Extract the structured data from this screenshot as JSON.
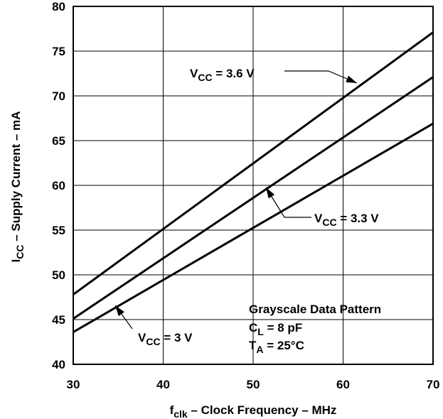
{
  "chart_data": {
    "type": "line",
    "xlabel": {
      "main": "f",
      "sub": "clk",
      "rest": " – Clock Frequency – MHz"
    },
    "ylabel": {
      "main": "I",
      "sub": "CC",
      "rest": " – Supply Current – mA"
    },
    "xlim": [
      30,
      70
    ],
    "ylim": [
      40,
      80
    ],
    "xticks": [
      30,
      40,
      50,
      60,
      70
    ],
    "yticks": [
      40,
      45,
      50,
      55,
      60,
      65,
      70,
      75,
      80
    ],
    "grid": true,
    "series": [
      {
        "name": "VCC = 3.6 V",
        "x": [
          30,
          70
        ],
        "y": [
          47.8,
          77.1
        ]
      },
      {
        "name": "VCC = 3.3 V",
        "x": [
          30,
          70
        ],
        "y": [
          45.1,
          72.1
        ]
      },
      {
        "name": "VCC = 3 V",
        "x": [
          30,
          70
        ],
        "y": [
          43.6,
          66.9
        ]
      }
    ],
    "labels": [
      {
        "main": "V",
        "sub": "CC",
        "rest": " = 3.6 V"
      },
      {
        "main": "V",
        "sub": "CC",
        "rest": " = 3.3 V"
      },
      {
        "main": "V",
        "sub": "CC",
        "rest": " = 3 V"
      }
    ],
    "annotation": {
      "line1": "Grayscale Data Pattern",
      "line2": {
        "main": "C",
        "sub": "L",
        "rest": " = 8 pF"
      },
      "line3": {
        "main": "T",
        "sub": "A",
        "rest": " = 25°C"
      }
    }
  }
}
